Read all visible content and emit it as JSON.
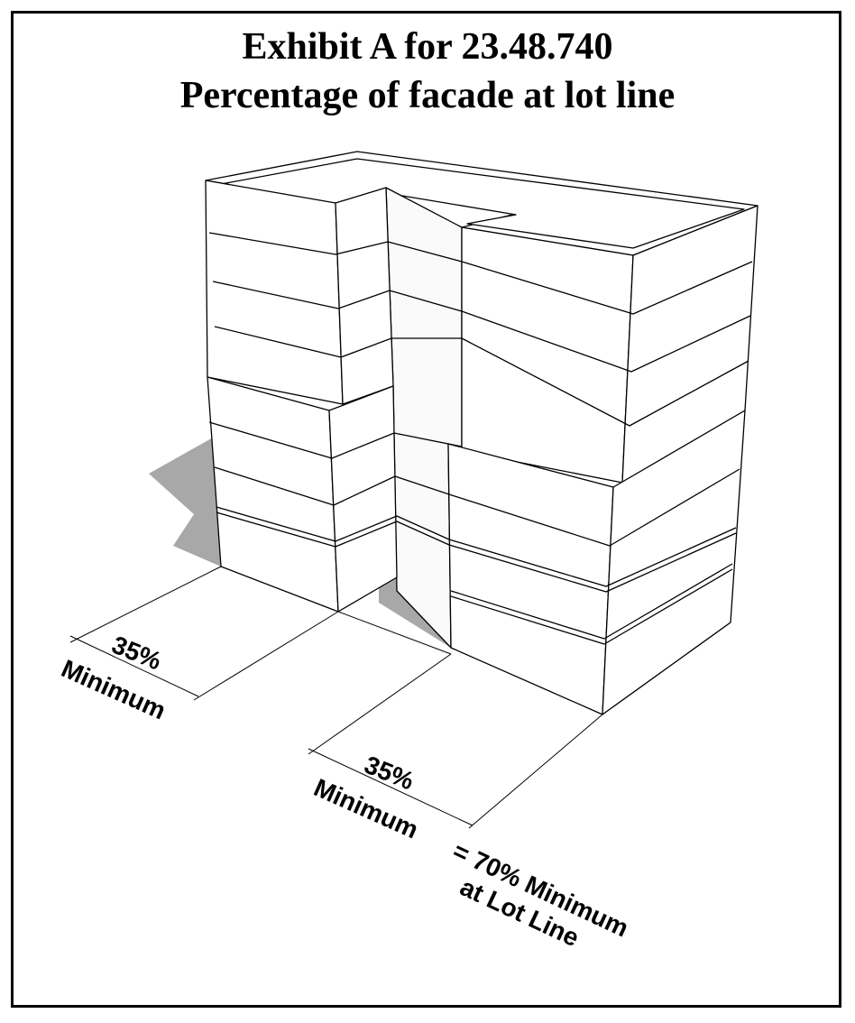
{
  "title": {
    "line1": "Exhibit A for 23.48.740",
    "line2": "Percentage of facade at lot line"
  },
  "labels": {
    "left_percent": "35%",
    "left_minimum": "Minimum",
    "right_percent": "35%",
    "right_minimum": "Minimum",
    "total_line1": "= 70% Minimum",
    "total_line2": "at Lot Line"
  },
  "colors": {
    "face": "#ffffff",
    "shade_face": "#f2f2f2",
    "shadow": "#a8a8a8",
    "line": "#000000"
  }
}
